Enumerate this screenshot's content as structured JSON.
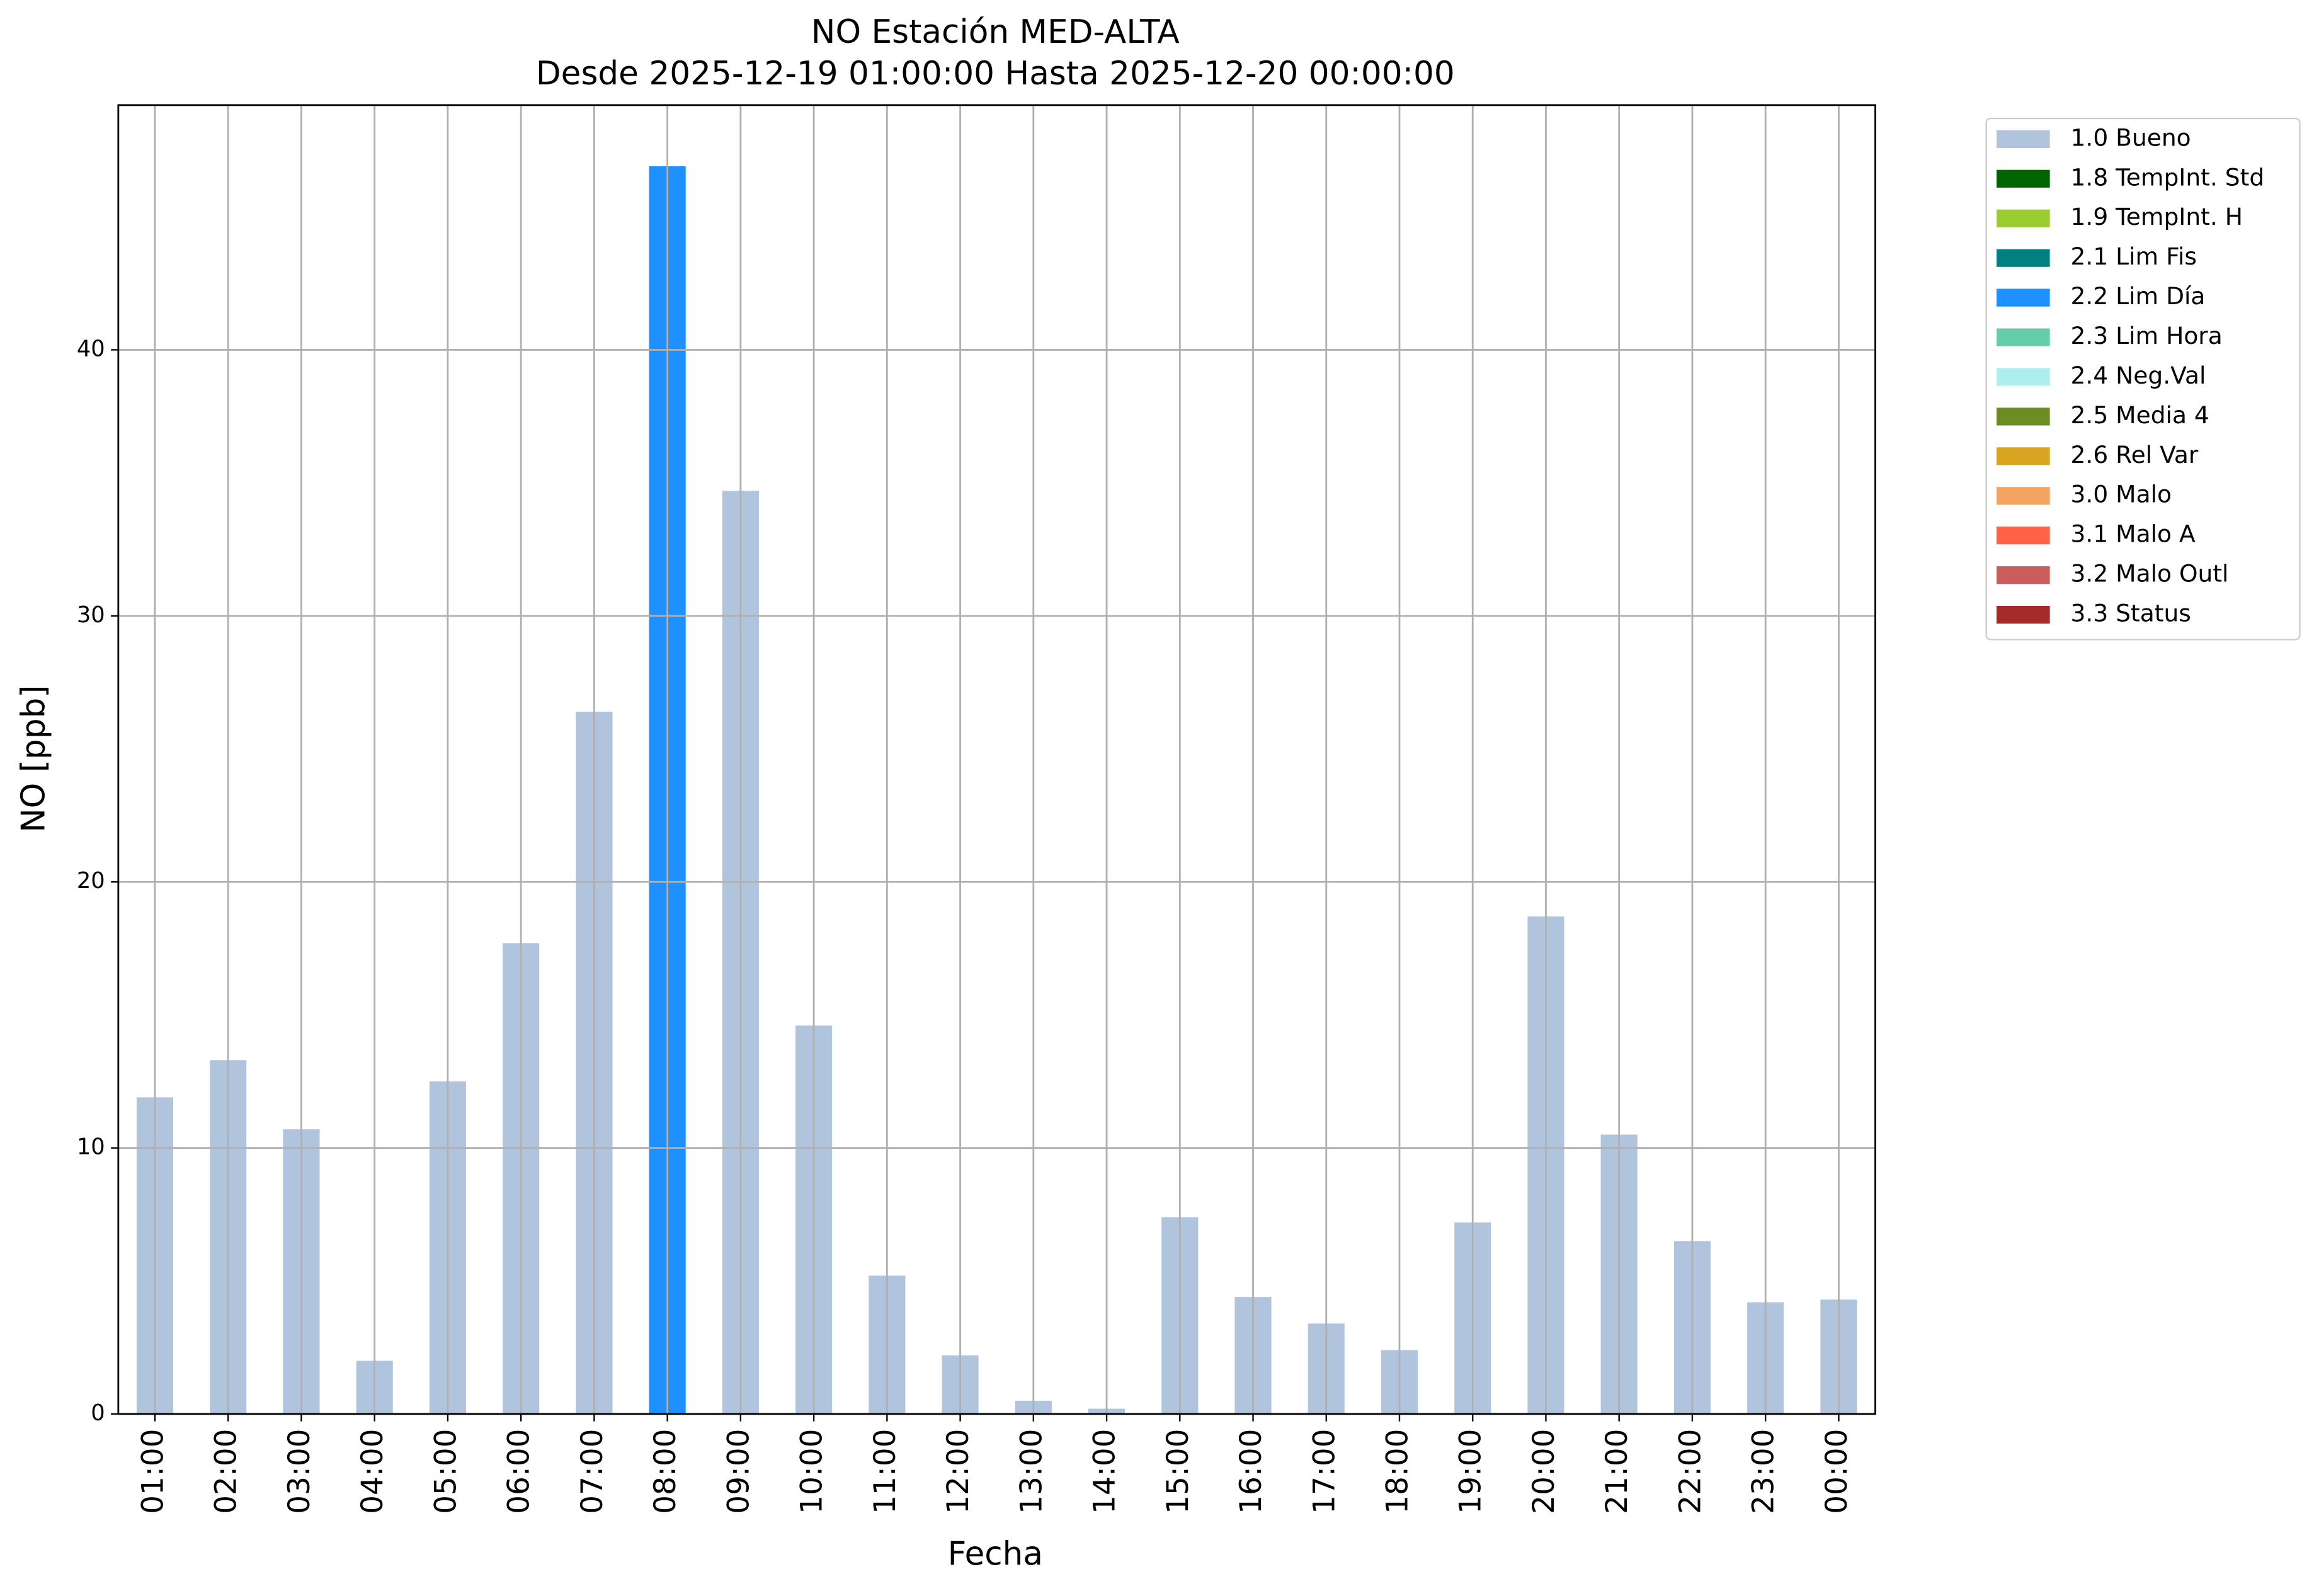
{
  "chart_data": {
    "type": "stacked_bar",
    "title": "NO Estación MED-ALTA",
    "subtitle": "Desde 2025-12-19 01:00:00 Hasta 2025-12-20 00:00:00",
    "xlabel": "Fecha",
    "ylabel": "NO [ppb]",
    "categories": [
      "01:00",
      "02:00",
      "03:00",
      "04:00",
      "05:00",
      "06:00",
      "07:00",
      "08:00",
      "09:00",
      "10:00",
      "11:00",
      "12:00",
      "13:00",
      "14:00",
      "15:00",
      "16:00",
      "17:00",
      "18:00",
      "19:00",
      "20:00",
      "21:00",
      "22:00",
      "23:00",
      "00:00"
    ],
    "series": [
      {
        "name": "1.0 Bueno",
        "color": "#b0c4de",
        "values": [
          11.9,
          13.3,
          10.7,
          2.0,
          12.5,
          17.7,
          26.4,
          null,
          34.7,
          14.6,
          5.2,
          2.2,
          0.5,
          0.2,
          7.4,
          4.4,
          3.4,
          2.4,
          7.2,
          18.7,
          10.5,
          6.5,
          4.2,
          4.3
        ]
      },
      {
        "name": "1.8 TempInt. Std",
        "color": "#006400",
        "values": [
          null,
          null,
          null,
          null,
          null,
          null,
          null,
          null,
          null,
          null,
          null,
          null,
          null,
          null,
          null,
          null,
          null,
          null,
          null,
          null,
          null,
          null,
          null,
          null
        ]
      },
      {
        "name": "1.9 TempInt. H",
        "color": "#9acd32",
        "values": [
          null,
          null,
          null,
          null,
          null,
          null,
          null,
          null,
          null,
          null,
          null,
          null,
          null,
          null,
          null,
          null,
          null,
          null,
          null,
          null,
          null,
          null,
          null,
          null
        ]
      },
      {
        "name": "2.1 Lim Fis",
        "color": "#008080",
        "values": [
          null,
          null,
          null,
          null,
          null,
          null,
          null,
          null,
          null,
          null,
          null,
          null,
          null,
          null,
          null,
          null,
          null,
          null,
          null,
          null,
          null,
          null,
          null,
          null
        ]
      },
      {
        "name": "2.2 Lim Día",
        "color": "#1e90ff",
        "values": [
          null,
          null,
          null,
          null,
          null,
          null,
          null,
          46.9,
          null,
          null,
          null,
          null,
          null,
          null,
          null,
          null,
          null,
          null,
          null,
          null,
          null,
          null,
          null,
          null
        ]
      },
      {
        "name": "2.3 Lim Hora",
        "color": "#66cdaa",
        "values": [
          null,
          null,
          null,
          null,
          null,
          null,
          null,
          null,
          null,
          null,
          null,
          null,
          null,
          null,
          null,
          null,
          null,
          null,
          null,
          null,
          null,
          null,
          null,
          null
        ]
      },
      {
        "name": "2.4 Neg.Val",
        "color": "#afeeee",
        "values": [
          null,
          null,
          null,
          null,
          null,
          null,
          null,
          null,
          null,
          null,
          null,
          null,
          null,
          null,
          null,
          null,
          null,
          null,
          null,
          null,
          null,
          null,
          null,
          null
        ]
      },
      {
        "name": "2.5 Media 4",
        "color": "#6b8e23",
        "values": [
          null,
          null,
          null,
          null,
          null,
          null,
          null,
          null,
          null,
          null,
          null,
          null,
          null,
          null,
          null,
          null,
          null,
          null,
          null,
          null,
          null,
          null,
          null,
          null
        ]
      },
      {
        "name": "2.6 Rel Var",
        "color": "#daa520",
        "values": [
          null,
          null,
          null,
          null,
          null,
          null,
          null,
          null,
          null,
          null,
          null,
          null,
          null,
          null,
          null,
          null,
          null,
          null,
          null,
          null,
          null,
          null,
          null,
          null
        ]
      },
      {
        "name": "3.0 Malo",
        "color": "#f4a460",
        "values": [
          null,
          null,
          null,
          null,
          null,
          null,
          null,
          null,
          null,
          null,
          null,
          null,
          null,
          null,
          null,
          null,
          null,
          null,
          null,
          null,
          null,
          null,
          null,
          null
        ]
      },
      {
        "name": "3.1 Malo A",
        "color": "#ff6347",
        "values": [
          null,
          null,
          null,
          null,
          null,
          null,
          null,
          null,
          null,
          null,
          null,
          null,
          null,
          null,
          null,
          null,
          null,
          null,
          null,
          null,
          null,
          null,
          null,
          null
        ]
      },
      {
        "name": "3.2 Malo Outl",
        "color": "#cd5c5c",
        "values": [
          null,
          null,
          null,
          null,
          null,
          null,
          null,
          null,
          null,
          null,
          null,
          null,
          null,
          null,
          null,
          null,
          null,
          null,
          null,
          null,
          null,
          null,
          null,
          null
        ]
      },
      {
        "name": "3.3 Status",
        "color": "#a52a2a",
        "values": [
          null,
          null,
          null,
          null,
          null,
          null,
          null,
          null,
          null,
          null,
          null,
          null,
          null,
          null,
          null,
          null,
          null,
          null,
          null,
          null,
          null,
          null,
          null,
          null
        ]
      }
    ],
    "ylim": [
      0,
      49.2
    ],
    "yticks": [
      0,
      10,
      20,
      30,
      40
    ],
    "grid": true,
    "legend": "outside-upper-right"
  }
}
